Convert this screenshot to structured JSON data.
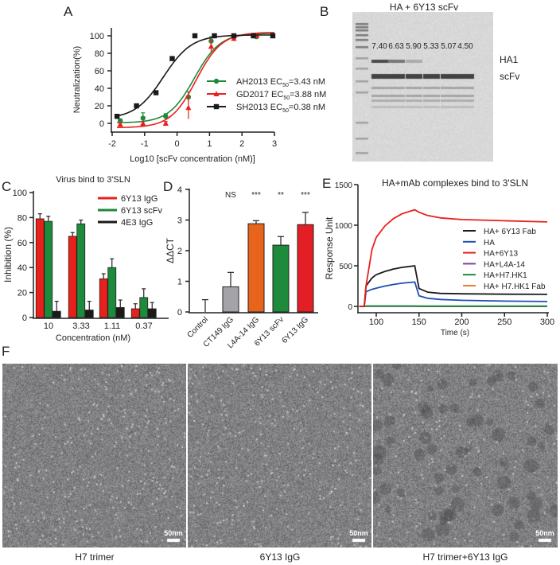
{
  "colors": {
    "red": "#e8201c",
    "green": "#1e8a3c",
    "black": "#1a1a1a",
    "blue": "#1f4fb4",
    "purple": "#7b3fa0",
    "orange": "#f07a30",
    "gray": "#a4a4a8",
    "orange_bar": "#e8641c"
  },
  "panels": {
    "A": "A",
    "B": "B",
    "C": "C",
    "D": "D",
    "E": "E",
    "F": "F"
  },
  "chart_data": [
    {
      "panel": "A",
      "type": "line",
      "xlabel": "Log10 [scFv concentration (nM)]",
      "ylabel": "Neutralization(%)",
      "xlim": [
        -2,
        3
      ],
      "ylim": [
        0,
        100
      ],
      "xticks": [
        "-2",
        "-1",
        "0",
        "1",
        "2",
        "3"
      ],
      "yticks": [
        "0",
        "20",
        "40",
        "60",
        "80",
        "100"
      ],
      "legend_position": "right",
      "series": [
        {
          "name": "AH2013 EC50=3.43 nM",
          "label_main": "AH2013 EC",
          "label_sub": "50",
          "label_tail": "=3.43 nM",
          "color": "#1e8a3c",
          "marker": "circle",
          "ec50_nM": 3.43,
          "x": [
            -1.75,
            -1.05,
            -0.35,
            0.35,
            1.05,
            1.75,
            2.45
          ],
          "y": [
            3,
            6,
            8,
            30,
            94,
            99,
            99
          ],
          "err": [
            2,
            6,
            3,
            6,
            5,
            2,
            1
          ]
        },
        {
          "name": "GD2017 EC50=3.88 nM",
          "label_main": "GD2017 EC",
          "label_sub": "50",
          "label_tail": "=3.88 nM",
          "color": "#e8201c",
          "marker": "triangle",
          "ec50_nM": 3.88,
          "x": [
            -1.75,
            -1.05,
            -0.35,
            0.35,
            1.05,
            1.75,
            2.45
          ],
          "y": [
            -1,
            0,
            0,
            18,
            88,
            97,
            100
          ],
          "err": [
            2,
            2,
            2,
            13,
            7,
            3,
            1
          ]
        },
        {
          "name": "SH2013 EC50=0.38 nM",
          "label_main": "SH2013 EC",
          "label_sub": "50",
          "label_tail": "=0.38 nM",
          "color": "#1a1a1a",
          "marker": "square",
          "ec50_nM": 0.38,
          "x": [
            -1.85,
            -1.25,
            -0.65,
            -0.15,
            0.55,
            1.15,
            1.75,
            2.35,
            2.95
          ],
          "y": [
            8,
            20,
            35,
            74,
            100,
            100,
            100,
            100,
            100
          ],
          "err": [
            0,
            0,
            0,
            2,
            0,
            0,
            0,
            0,
            0
          ]
        }
      ]
    },
    {
      "panel": "B",
      "type": "gel",
      "title": "HA + 6Y13 scFv",
      "lane_labels": [
        "7.40",
        "6.63",
        "5.90",
        "5.33",
        "5.07",
        "4.50"
      ],
      "band_labels": [
        "HA1",
        "scFv"
      ],
      "ha1_band_intensity": [
        0.8,
        0.55,
        0.25,
        0,
        0,
        0
      ]
    },
    {
      "panel": "C",
      "type": "bar",
      "title": "Virus bind to 3'SLN",
      "xlabel": "Concentration (nM)",
      "ylabel": "Inhibition (%)",
      "ylim": [
        0,
        100
      ],
      "yticks": [
        "0",
        "20",
        "40",
        "60",
        "80",
        "100"
      ],
      "categories": [
        "10",
        "3.33",
        "1.11",
        "0.37"
      ],
      "legend_position": "top-right",
      "series": [
        {
          "name": "6Y13 IgG",
          "color": "#e8201c",
          "values": [
            79,
            65,
            31,
            7
          ],
          "err": [
            4,
            3,
            4,
            4
          ]
        },
        {
          "name": "6Y13 scFv",
          "color": "#1e8a3c",
          "values": [
            77,
            75,
            40,
            16
          ],
          "err": [
            4,
            3,
            7,
            7
          ]
        },
        {
          "name": "4E3 IgG",
          "color": "#1a1a1a",
          "values": [
            5,
            6,
            8,
            7
          ],
          "err": [
            8,
            7,
            6,
            5
          ]
        }
      ]
    },
    {
      "panel": "D",
      "type": "bar",
      "ylabel": "ΔΔCT",
      "ylim": [
        0,
        4
      ],
      "yticks": [
        "0",
        "1",
        "2",
        "3",
        "4"
      ],
      "categories": [
        "Control",
        "CT149 IgG",
        "L4A-14 IgG",
        "6Y13 scFv",
        "6Y13 IgG"
      ],
      "values": [
        0,
        0.82,
        2.88,
        2.18,
        2.85
      ],
      "err": [
        0.4,
        0.47,
        0.1,
        0.28,
        0.4
      ],
      "colors": [
        "#ffffff",
        "#a4a4a8",
        "#e8641c",
        "#1e8a3c",
        "#e31e24"
      ],
      "significance": [
        "",
        "NS",
        "***",
        "**",
        "***"
      ]
    },
    {
      "panel": "E",
      "type": "line",
      "title": "HA+mAb complexes bind to 3'SLN",
      "xlabel": "Time (s)",
      "ylabel": "Response Unit",
      "xlim": [
        80,
        300
      ],
      "ylim": [
        0,
        1500
      ],
      "xticks": [
        "100",
        "150",
        "200",
        "250",
        "300"
      ],
      "yticks": [
        "0",
        "500",
        "1000",
        "1500"
      ],
      "legend_position": "right",
      "x": [
        80,
        86,
        88,
        95,
        100,
        110,
        120,
        130,
        145,
        150,
        160,
        175,
        200,
        250,
        300
      ],
      "series": [
        {
          "name": "HA+ 6Y13 Fab",
          "color": "#1a1a1a",
          "y": [
            0,
            0,
            250,
            350,
            390,
            430,
            460,
            480,
            500,
            220,
            175,
            160,
            155,
            150,
            148
          ]
        },
        {
          "name": "HA",
          "color": "#1f4fb4",
          "y": [
            0,
            0,
            180,
            210,
            225,
            250,
            270,
            285,
            300,
            130,
            100,
            85,
            75,
            65,
            60
          ]
        },
        {
          "name": "HA+6Y13",
          "color": "#e8201c",
          "y": [
            0,
            0,
            250,
            700,
            850,
            990,
            1080,
            1140,
            1190,
            1160,
            1120,
            1090,
            1070,
            1055,
            1040
          ]
        },
        {
          "name": "HA+L4A-14",
          "color": "#7b3fa0",
          "y": [
            0,
            0,
            2,
            2,
            2,
            2,
            2,
            2,
            2,
            0,
            0,
            0,
            0,
            0,
            0
          ]
        },
        {
          "name": "HA+H7.HK1",
          "color": "#1e8a3c",
          "y": [
            0,
            0,
            5,
            5,
            5,
            5,
            5,
            5,
            5,
            3,
            3,
            3,
            3,
            3,
            3
          ]
        },
        {
          "name": "HA+ H7.HK1 Fab",
          "color": "#f07a30",
          "y": [
            0,
            0,
            1,
            1,
            1,
            1,
            1,
            1,
            1,
            0,
            0,
            0,
            0,
            0,
            0
          ]
        }
      ]
    }
  ],
  "em_images": [
    {
      "caption": "H7 trimer",
      "scale_bar": "50nm"
    },
    {
      "caption": "6Y13 IgG",
      "scale_bar": "50nm"
    },
    {
      "caption": "H7 trimer+6Y13 IgG",
      "scale_bar": "50nm"
    }
  ]
}
